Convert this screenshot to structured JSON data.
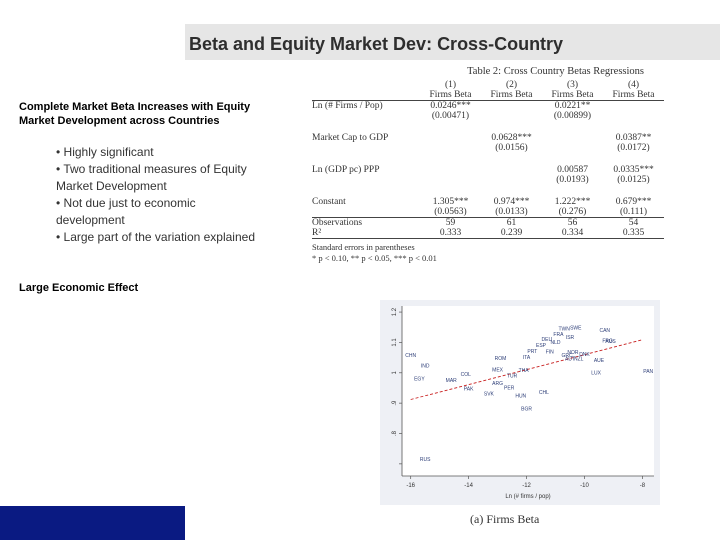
{
  "slide": {
    "title": "Beta and Equity Market Dev: Cross-Country",
    "heading": "Complete Market Beta Increases with Equity Market Development across Countries",
    "bullets": [
      "• Highly significant",
      "• Two traditional measures of Equity Market Development",
      "• Not due just to economic development",
      "• Large part of the variation explained"
    ],
    "effect_label": "Large Economic Effect"
  },
  "table": {
    "caption": "Table 2: Cross Country Betas Regressions",
    "col_numbers": [
      "(1)",
      "(2)",
      "(3)",
      "(4)"
    ],
    "col_headers": [
      "Firms Beta",
      "Firms Beta",
      "Firms Beta",
      "Firms Beta"
    ],
    "rows": [
      {
        "label": "Ln (# Firms / Pop)",
        "coef": [
          "0.0246***",
          "",
          "0.0221**",
          ""
        ],
        "se": [
          "(0.00471)",
          "",
          "(0.00899)",
          ""
        ]
      },
      {
        "label": "Market Cap to GDP",
        "coef": [
          "",
          "0.0628***",
          "",
          "0.0387**"
        ],
        "se": [
          "",
          "(0.0156)",
          "",
          "(0.0172)"
        ]
      },
      {
        "label": "Ln (GDP pc) PPP",
        "coef": [
          "",
          "",
          "0.00587",
          "0.0335***"
        ],
        "se": [
          "",
          "",
          "(0.0193)",
          "(0.0125)"
        ]
      },
      {
        "label": "Constant",
        "coef": [
          "1.305***",
          "0.974***",
          "1.222***",
          "0.679***"
        ],
        "se": [
          "(0.0563)",
          "(0.0133)",
          "(0.276)",
          "(0.111)"
        ]
      }
    ],
    "observations_label": "Observations",
    "observations": [
      "59",
      "61",
      "56",
      "54"
    ],
    "r2_label": "R²",
    "r2": [
      "0.333",
      "0.239",
      "0.334",
      "0.335"
    ],
    "note1": "Standard errors in parentheses",
    "note2": "* p < 0.10, ** p < 0.05, *** p < 0.01"
  },
  "chart_data": {
    "type": "scatter",
    "title": "",
    "caption": "(a) Firms Beta",
    "xlabel": "Ln (# firms / pop)",
    "ylabel": "",
    "xlim": [
      -16.3,
      -7.6
    ],
    "ylim": [
      0.66,
      1.22
    ],
    "xticks": [
      -16,
      -14,
      -12,
      -10,
      -8
    ],
    "yticks": [
      0.7,
      0.8,
      0.9,
      1.0,
      1.1,
      1.2
    ],
    "ytick_labels": [
      "",
      ".8",
      ".9",
      "1",
      "1.1",
      "1.2"
    ],
    "xtick_labels": [
      "-16",
      "-14",
      "-12",
      "-10",
      "-8"
    ],
    "grid": false,
    "fit_line": {
      "x": [
        -16,
        -8
      ],
      "y": [
        0.912,
        1.109
      ]
    },
    "points": [
      {
        "label": "TWN",
        "x": -10.7,
        "y": 1.139
      },
      {
        "label": "SWE",
        "x": -10.3,
        "y": 1.142
      },
      {
        "label": "FRA",
        "x": -10.9,
        "y": 1.122
      },
      {
        "label": "CAN",
        "x": -9.3,
        "y": 1.134
      },
      {
        "label": "ISR",
        "x": -10.5,
        "y": 1.112
      },
      {
        "label": "DEU",
        "x": -11.3,
        "y": 1.104
      },
      {
        "label": "NLD",
        "x": -11.0,
        "y": 1.095
      },
      {
        "label": "AUS",
        "x": -9.1,
        "y": 1.098
      },
      {
        "label": "FRG",
        "x": -9.2,
        "y": 1.1
      },
      {
        "label": "ESP",
        "x": -11.5,
        "y": 1.085
      },
      {
        "label": "PRT",
        "x": -11.8,
        "y": 1.065
      },
      {
        "label": "FIN",
        "x": -11.2,
        "y": 1.063
      },
      {
        "label": "NOR",
        "x": -10.4,
        "y": 1.062
      },
      {
        "label": "DNK",
        "x": -10.0,
        "y": 1.055
      },
      {
        "label": "GRC",
        "x": -10.6,
        "y": 1.052
      },
      {
        "label": "NZL",
        "x": -10.2,
        "y": 1.041
      },
      {
        "label": "AUT",
        "x": -10.5,
        "y": 1.04
      },
      {
        "label": "AUE",
        "x": -9.5,
        "y": 1.035
      },
      {
        "label": "ITA",
        "x": -12.0,
        "y": 1.045
      },
      {
        "label": "ROM",
        "x": -12.9,
        "y": 1.042
      },
      {
        "label": "CHN",
        "x": -16.0,
        "y": 1.052
      },
      {
        "label": "IND",
        "x": -15.5,
        "y": 1.018
      },
      {
        "label": "THA",
        "x": -12.1,
        "y": 1.003
      },
      {
        "label": "MEX",
        "x": -13.0,
        "y": 1.005
      },
      {
        "label": "COL",
        "x": -14.1,
        "y": 0.99
      },
      {
        "label": "EGY",
        "x": -15.7,
        "y": 0.975
      },
      {
        "label": "MAR",
        "x": -14.6,
        "y": 0.97
      },
      {
        "label": "TUR",
        "x": -12.5,
        "y": 0.985
      },
      {
        "label": "ARG",
        "x": -13.0,
        "y": 0.96
      },
      {
        "label": "PER",
        "x": -12.6,
        "y": 0.945
      },
      {
        "label": "PAK",
        "x": -14.0,
        "y": 0.942
      },
      {
        "label": "CHL",
        "x": -11.4,
        "y": 0.93
      },
      {
        "label": "SVK",
        "x": -13.3,
        "y": 0.925
      },
      {
        "label": "HUN",
        "x": -12.2,
        "y": 0.918
      },
      {
        "label": "LUX",
        "x": -9.6,
        "y": 0.995
      },
      {
        "label": "PAN",
        "x": -7.8,
        "y": 0.999
      },
      {
        "label": "BGR",
        "x": -12.0,
        "y": 0.875
      },
      {
        "label": "RUS",
        "x": -15.5,
        "y": 0.71
      }
    ]
  },
  "colors": {
    "title_bar": "#e6e6e6",
    "footer_block": "#0a1a82",
    "marker_text": "#2d3e78",
    "fit_line": "#c81e1e"
  }
}
